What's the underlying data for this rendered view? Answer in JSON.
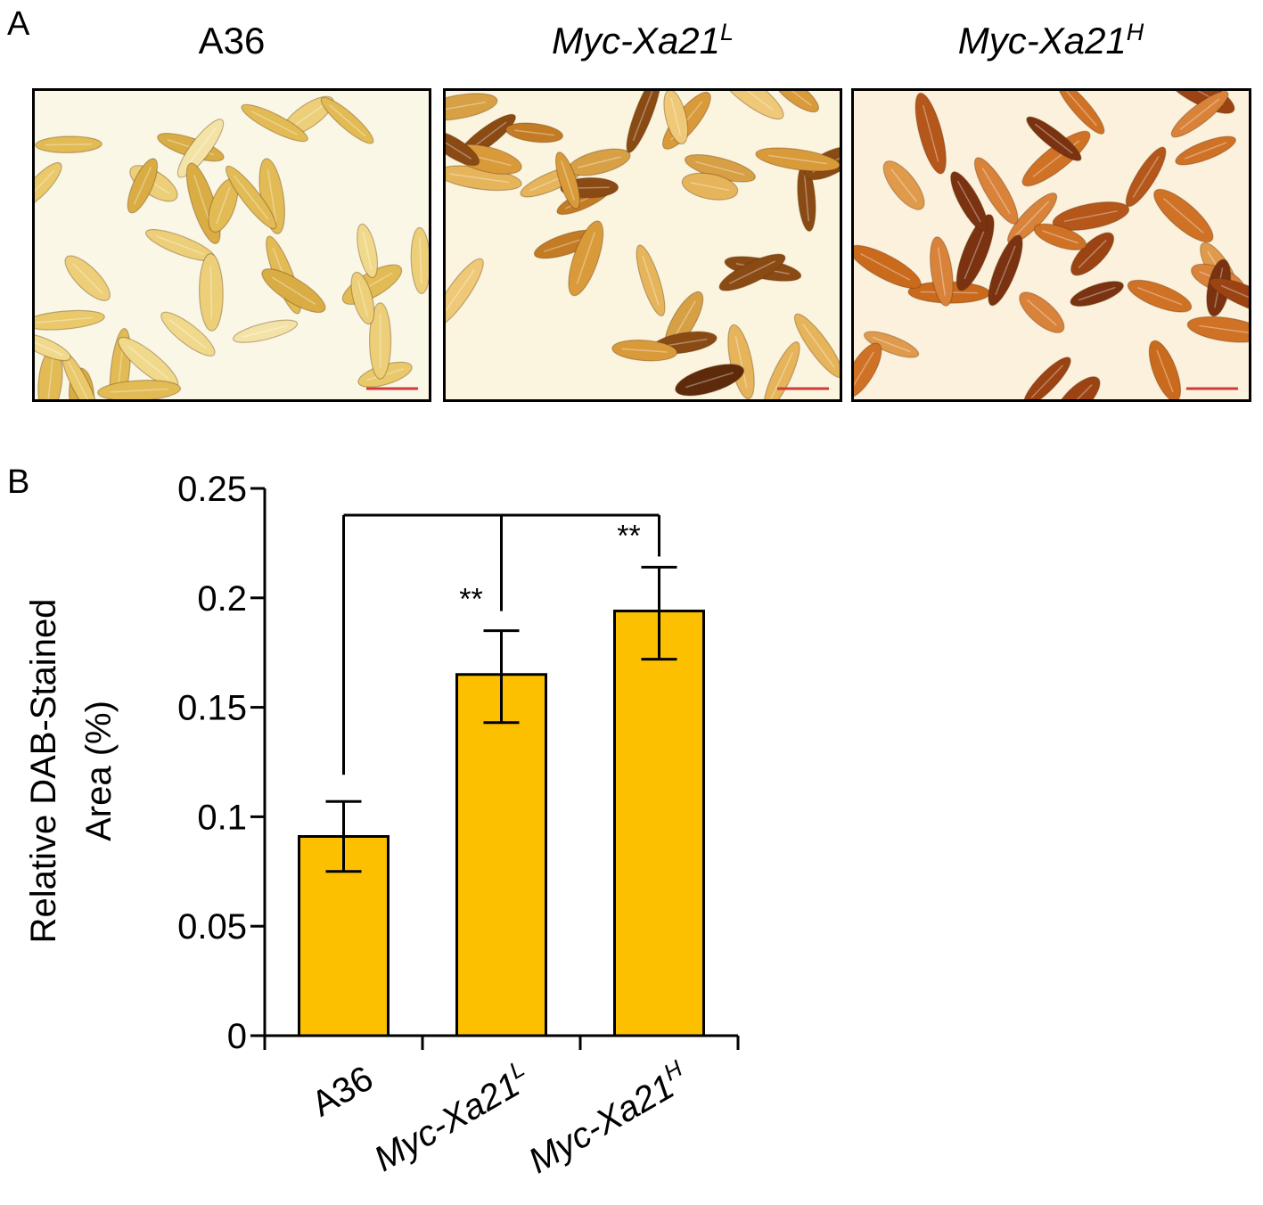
{
  "figure": {
    "panel_a_letter": "A",
    "panel_b_letter": "B"
  },
  "panel_a": {
    "photos": [
      {
        "title": "A36",
        "title_sup": "",
        "italic": false,
        "stain": "pale",
        "scale_bar_color": "#d23a3a"
      },
      {
        "title": "Myc-Xa21",
        "title_sup": "L",
        "italic": true,
        "stain": "medium",
        "scale_bar_color": "#d23a3a"
      },
      {
        "title": "Myc-Xa21",
        "title_sup": "H",
        "italic": true,
        "stain": "dark",
        "scale_bar_color": "#d23a3a"
      }
    ]
  },
  "chart_data": {
    "type": "bar",
    "categories": [
      {
        "label": "A36",
        "sup": "",
        "italic": false
      },
      {
        "label": "Myc-Xa21",
        "sup": "L",
        "italic": true
      },
      {
        "label": "Myc-Xa21",
        "sup": "H",
        "italic": true
      }
    ],
    "values": [
      0.091,
      0.165,
      0.194
    ],
    "error_upper": [
      0.107,
      0.185,
      0.214
    ],
    "error_lower": [
      0.075,
      0.143,
      0.172
    ],
    "ylabel_line1": "Relative DAB-Stained",
    "ylabel_line2": "Area (%)",
    "ylim": [
      0,
      0.25
    ],
    "yticks": [
      0,
      0.05,
      0.1,
      0.15,
      0.2,
      0.25
    ],
    "ytick_labels": [
      "0",
      "0.05",
      "0.1",
      "0.15",
      "0.2",
      "0.25"
    ],
    "significance": [
      "",
      "**",
      "**"
    ],
    "bar_color": "#fdc000",
    "grid": false
  }
}
